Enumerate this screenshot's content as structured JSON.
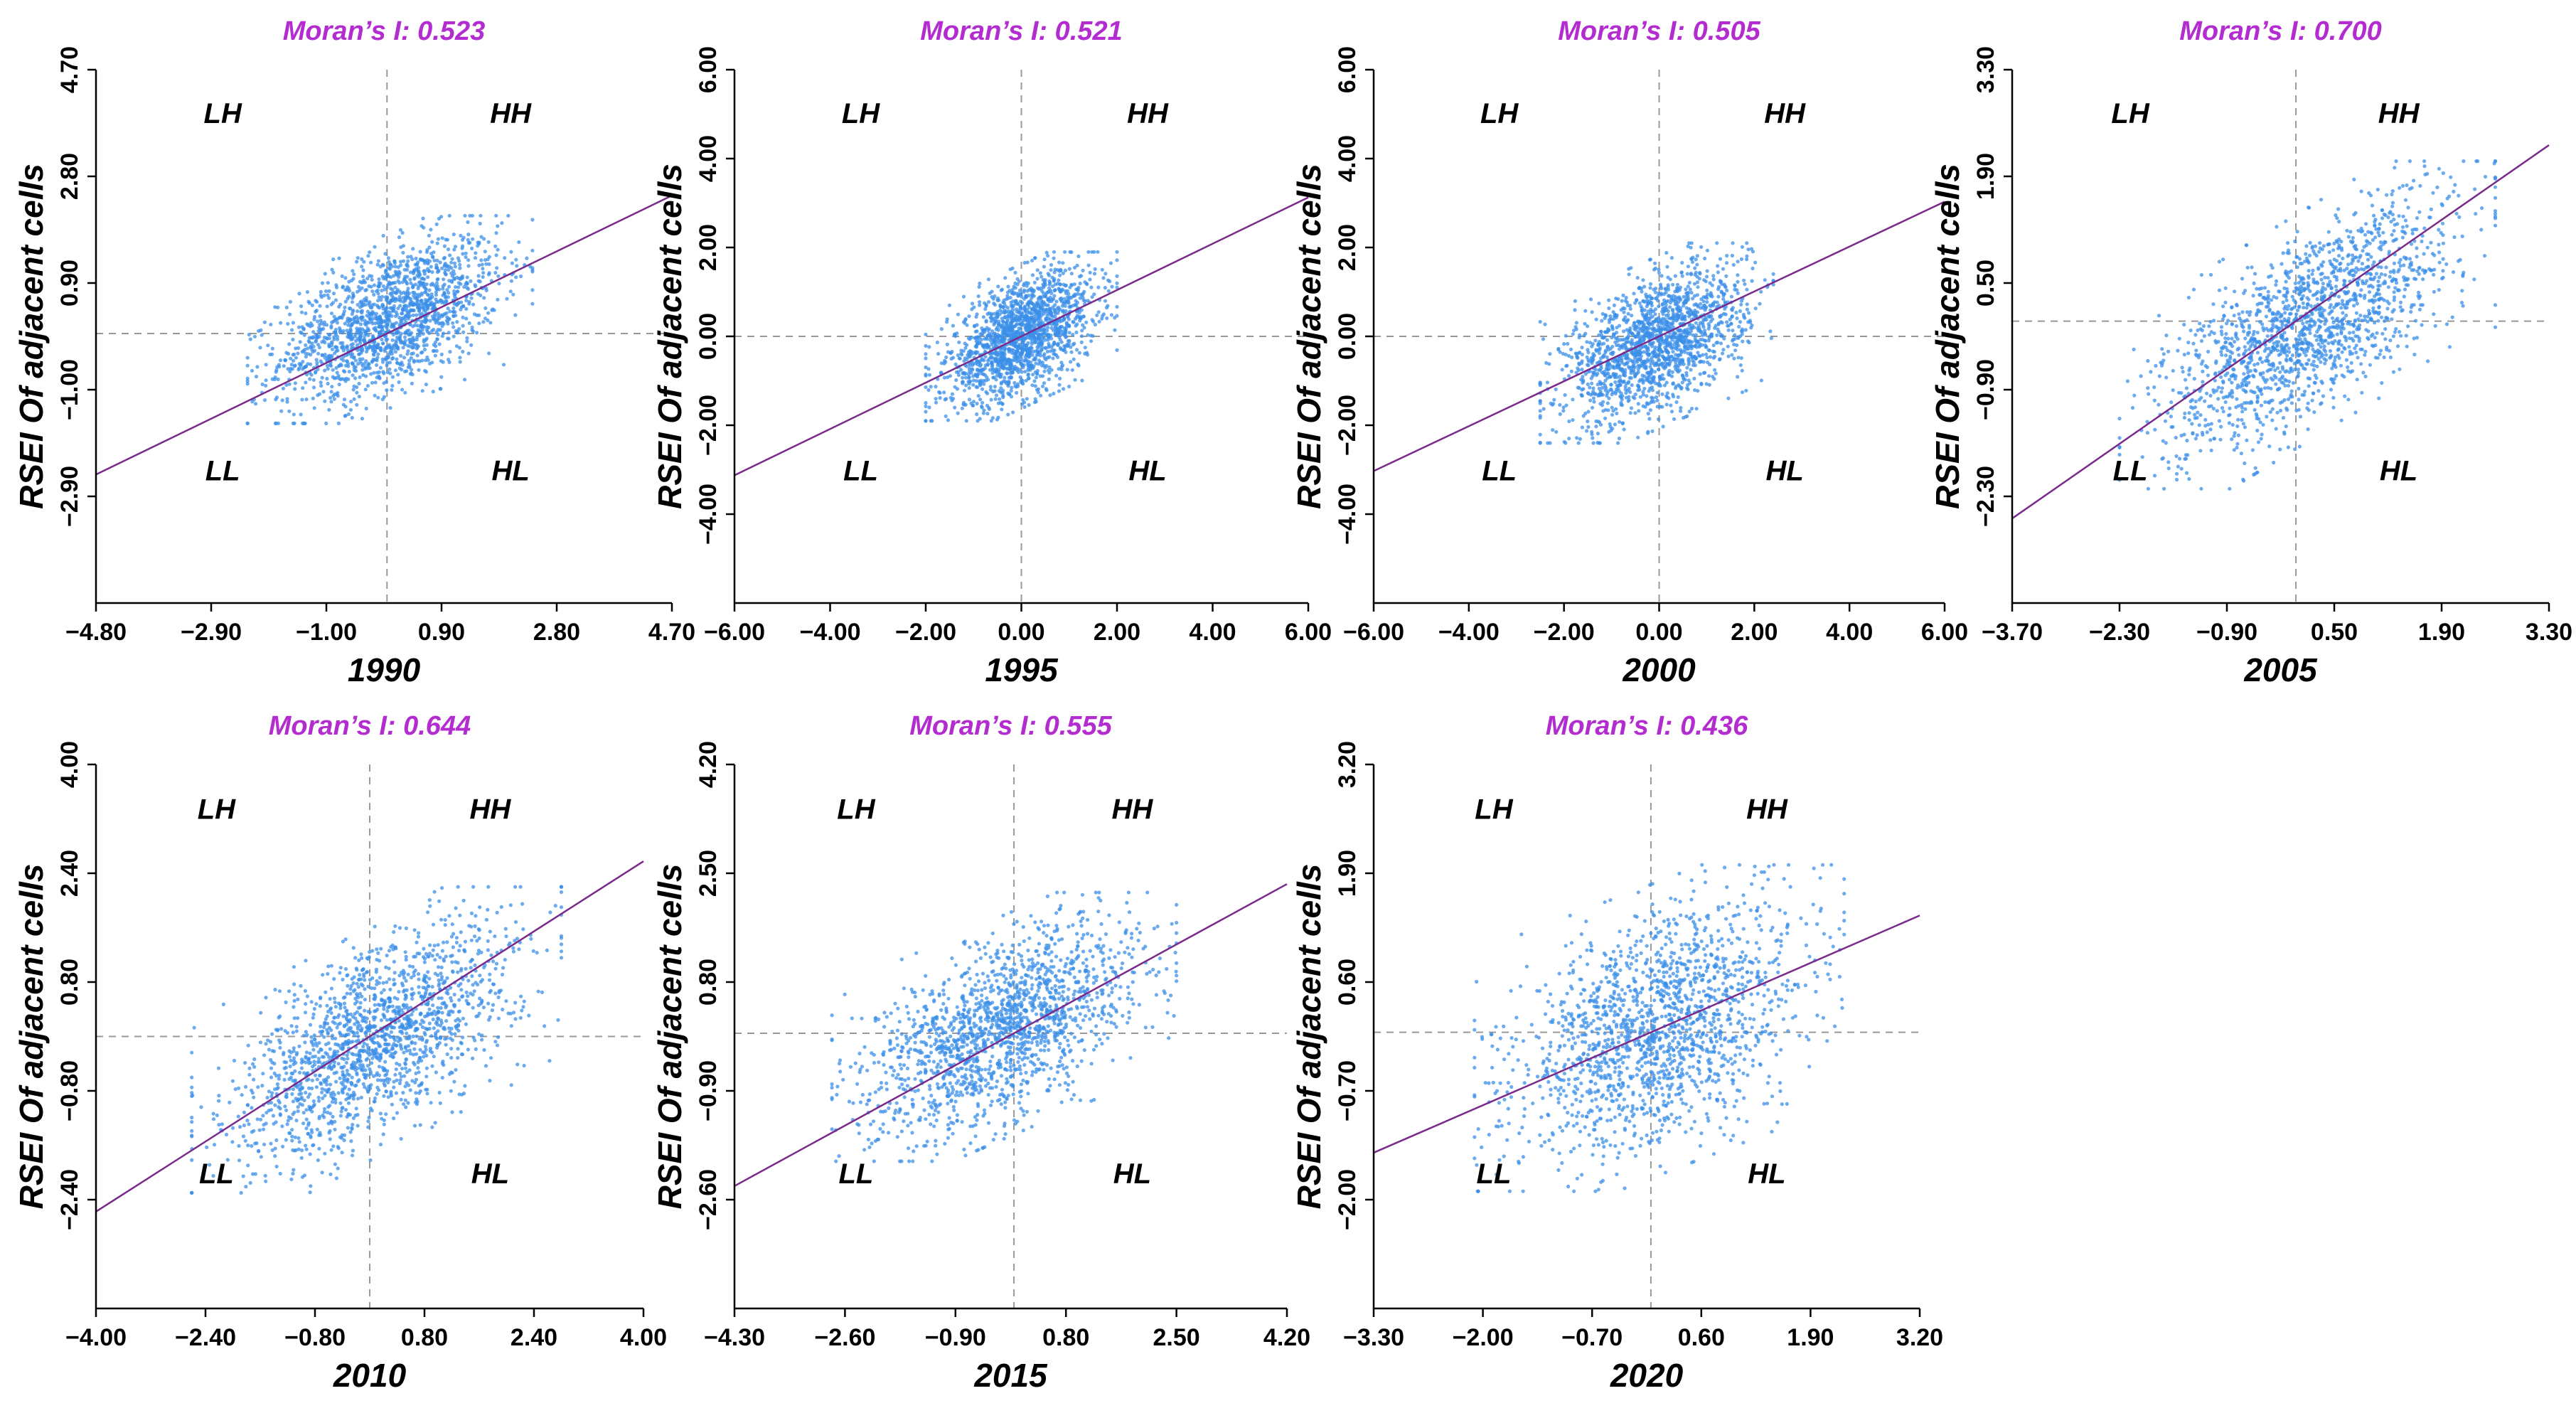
{
  "figure": {
    "type": "scatter",
    "colors": {
      "points": "#3b8fe8",
      "regression": "#7a2a8a",
      "title": "#b32cd0",
      "guides": "#999999",
      "axes": "#000000"
    }
  },
  "chart_data": [
    {
      "type": "scatter",
      "title": "Moran’s I: 0.523",
      "morans_i": 0.523,
      "xlabel": "1990",
      "ylabel": "RSEI Of adjacent cells",
      "xlim": [
        -4.8,
        4.7
      ],
      "ylim": [
        -4.8,
        4.7
      ],
      "x_ticks": [
        "−4.80",
        "−2.90",
        "−1.00",
        "0.90",
        "2.80",
        "4.70"
      ],
      "y_ticks": [
        "−2.90",
        "−1.00",
        "0.90",
        "2.80",
        "4.70"
      ],
      "y_tick_values": [
        -2.9,
        -1.0,
        0.9,
        2.8,
        4.7
      ],
      "quadrants": {
        "LH": "LH",
        "HH": "HH",
        "LL": "LL",
        "HL": "HL"
      },
      "points_summary": {
        "n": 1700,
        "x_range": [
          -2.3,
          2.4
        ],
        "y_range": [
          -1.6,
          2.1
        ]
      }
    },
    {
      "type": "scatter",
      "title": "Moran’s I: 0.521",
      "morans_i": 0.521,
      "xlabel": "1995",
      "ylabel": "RSEI Of adjacent cells",
      "xlim": [
        -6.0,
        6.0
      ],
      "ylim": [
        -6.0,
        6.0
      ],
      "x_ticks": [
        "−6.00",
        "−4.00",
        "−2.00",
        "0.00",
        "2.00",
        "4.00",
        "6.00"
      ],
      "y_ticks": [
        "−4.00",
        "−2.00",
        "0.00",
        "2.00",
        "4.00",
        "6.00"
      ],
      "y_tick_values": [
        -4,
        -2,
        0,
        2,
        4,
        6
      ],
      "quadrants": {
        "LH": "LH",
        "HH": "HH",
        "LL": "LL",
        "HL": "HL"
      },
      "points_summary": {
        "n": 1700,
        "x_range": [
          -2.0,
          2.0
        ],
        "y_range": [
          -1.9,
          1.9
        ]
      }
    },
    {
      "type": "scatter",
      "title": "Moran’s I: 0.505",
      "morans_i": 0.505,
      "xlabel": "2000",
      "ylabel": "RSEI Of adjacent cells",
      "xlim": [
        -6.0,
        6.0
      ],
      "ylim": [
        -6.0,
        6.0
      ],
      "x_ticks": [
        "−6.00",
        "−4.00",
        "−2.00",
        "0.00",
        "2.00",
        "4.00",
        "6.00"
      ],
      "y_ticks": [
        "−4.00",
        "−2.00",
        "0.00",
        "2.00",
        "4.00",
        "6.00"
      ],
      "y_tick_values": [
        -4,
        -2,
        0,
        2,
        4,
        6
      ],
      "quadrants": {
        "LH": "LH",
        "HH": "HH",
        "LL": "LL",
        "HL": "HL"
      },
      "points_summary": {
        "n": 1700,
        "x_range": [
          -2.5,
          2.4
        ],
        "y_range": [
          -2.4,
          2.1
        ]
      }
    },
    {
      "type": "scatter",
      "title": "Moran’s I: 0.700",
      "morans_i": 0.7,
      "xlabel": "2005",
      "ylabel": "RSEI Of adjacent cells",
      "xlim": [
        -3.7,
        3.3
      ],
      "ylim": [
        -3.7,
        3.3
      ],
      "x_ticks": [
        "−3.70",
        "−2.30",
        "−0.90",
        "0.50",
        "1.90",
        "3.30"
      ],
      "y_ticks": [
        "−2.30",
        "−0.90",
        "0.50",
        "1.90",
        "3.30"
      ],
      "y_tick_values": [
        -2.3,
        -0.9,
        0.5,
        1.9,
        3.3
      ],
      "quadrants": {
        "LH": "LH",
        "HH": "HH",
        "LL": "LL",
        "HL": "HL"
      },
      "points_summary": {
        "n": 1700,
        "x_range": [
          -2.3,
          2.6
        ],
        "y_range": [
          -2.2,
          2.1
        ]
      }
    },
    {
      "type": "scatter",
      "title": "Moran’s I: 0.644",
      "morans_i": 0.644,
      "xlabel": "2010",
      "ylabel": "RSEI Of adjacent cells",
      "xlim": [
        -4.0,
        4.0
      ],
      "ylim": [
        -4.0,
        4.0
      ],
      "x_ticks": [
        "−4.00",
        "−2.40",
        "−0.80",
        "0.80",
        "2.40",
        "4.00"
      ],
      "y_ticks": [
        "−2.40",
        "−0.80",
        "0.80",
        "2.40",
        "4.00"
      ],
      "y_tick_values": [
        -2.4,
        -0.8,
        0.8,
        2.4,
        4.0
      ],
      "quadrants": {
        "LH": "LH",
        "HH": "HH",
        "LL": "LL",
        "HL": "HL"
      },
      "points_summary": {
        "n": 1700,
        "x_range": [
          -2.6,
          2.8
        ],
        "y_range": [
          -2.3,
          2.2
        ]
      }
    },
    {
      "type": "scatter",
      "title": "Moran’s I: 0.555",
      "morans_i": 0.555,
      "xlabel": "2015",
      "ylabel": "RSEI Of adjacent cells",
      "xlim": [
        -4.3,
        4.2
      ],
      "ylim": [
        -4.3,
        4.2
      ],
      "x_ticks": [
        "−4.30",
        "−2.60",
        "−0.90",
        "0.80",
        "2.50",
        "4.20"
      ],
      "y_ticks": [
        "−2.60",
        "−0.90",
        "0.80",
        "2.50",
        "4.20"
      ],
      "y_tick_values": [
        -2.6,
        -0.9,
        0.8,
        2.5,
        4.2
      ],
      "quadrants": {
        "LH": "LH",
        "HH": "HH",
        "LL": "LL",
        "HL": "HL"
      },
      "points_summary": {
        "n": 1700,
        "x_range": [
          -2.8,
          2.5
        ],
        "y_range": [
          -2.0,
          2.2
        ]
      }
    },
    {
      "type": "scatter",
      "title": "Moran’s I: 0.436",
      "morans_i": 0.436,
      "xlabel": "2020",
      "ylabel": "RSEI Of adjacent cells",
      "xlim": [
        -3.3,
        3.2
      ],
      "ylim": [
        -3.3,
        3.2
      ],
      "x_ticks": [
        "−3.30",
        "−2.00",
        "−0.70",
        "0.60",
        "1.90",
        "3.20"
      ],
      "y_ticks": [
        "−2.00",
        "−0.70",
        "0.60",
        "1.90",
        "3.20"
      ],
      "y_tick_values": [
        -2.0,
        -0.7,
        0.6,
        1.9,
        3.2
      ],
      "quadrants": {
        "LH": "LH",
        "HH": "HH",
        "LL": "LL",
        "HL": "HL"
      },
      "points_summary": {
        "n": 1700,
        "x_range": [
          -2.1,
          2.3
        ],
        "y_range": [
          -1.9,
          2.0
        ]
      }
    }
  ]
}
